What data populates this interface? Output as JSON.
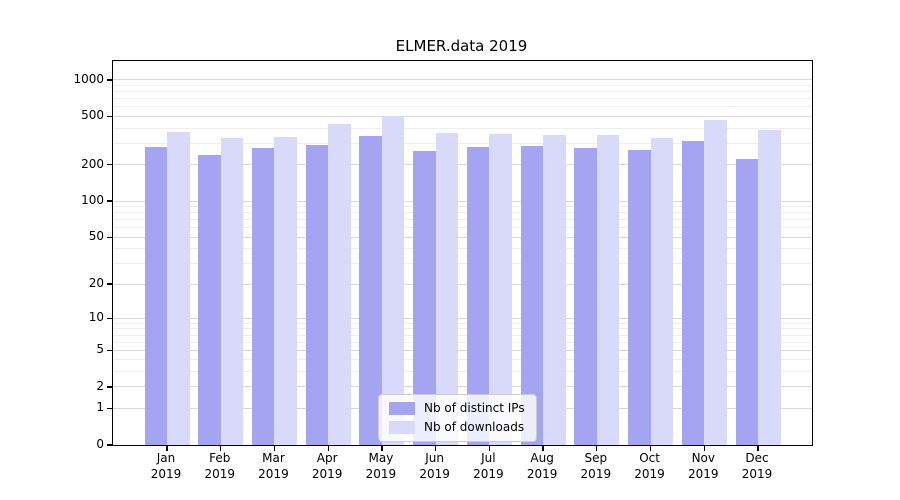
{
  "title": "ELMER.data 2019",
  "legend": {
    "items": [
      {
        "label": "Nb of distinct IPs",
        "color": "#a4a4f2"
      },
      {
        "label": "Nb of downloads",
        "color": "#d9d9f9"
      }
    ],
    "position": "lower center"
  },
  "chart_data": {
    "type": "bar",
    "title": "ELMER.data 2019",
    "categories": [
      "Jan",
      "Feb",
      "Mar",
      "Apr",
      "May",
      "Jun",
      "Jul",
      "Aug",
      "Sep",
      "Oct",
      "Nov",
      "Dec"
    ],
    "year": "2019",
    "series": [
      {
        "name": "Nb of distinct IPs",
        "color": "#a4a4f2",
        "values": [
          280,
          240,
          275,
          290,
          345,
          260,
          280,
          285,
          275,
          265,
          315,
          225
        ]
      },
      {
        "name": "Nb of downloads",
        "color": "#d9d9f9",
        "values": [
          375,
          330,
          340,
          430,
          505,
          365,
          360,
          350,
          350,
          335,
          465,
          390
        ]
      }
    ],
    "xlabel": "",
    "ylabel": "",
    "y_scale": "log(1+v)",
    "ylim": [
      0,
      1430
    ],
    "y_major_ticks": [
      0,
      1,
      2,
      5,
      10,
      20,
      50,
      100,
      200,
      500,
      1000
    ],
    "y_minor_ticks": [
      3,
      4,
      6,
      7,
      8,
      9,
      30,
      40,
      60,
      70,
      80,
      90,
      300,
      400,
      600,
      700,
      800,
      900
    ],
    "grid": "both",
    "legend_position": "lower center",
    "colors": {
      "grid_major": "#d9d9d9",
      "grid_minor": "#eeeeee",
      "spine": "#000000",
      "background": "#ffffff"
    }
  }
}
